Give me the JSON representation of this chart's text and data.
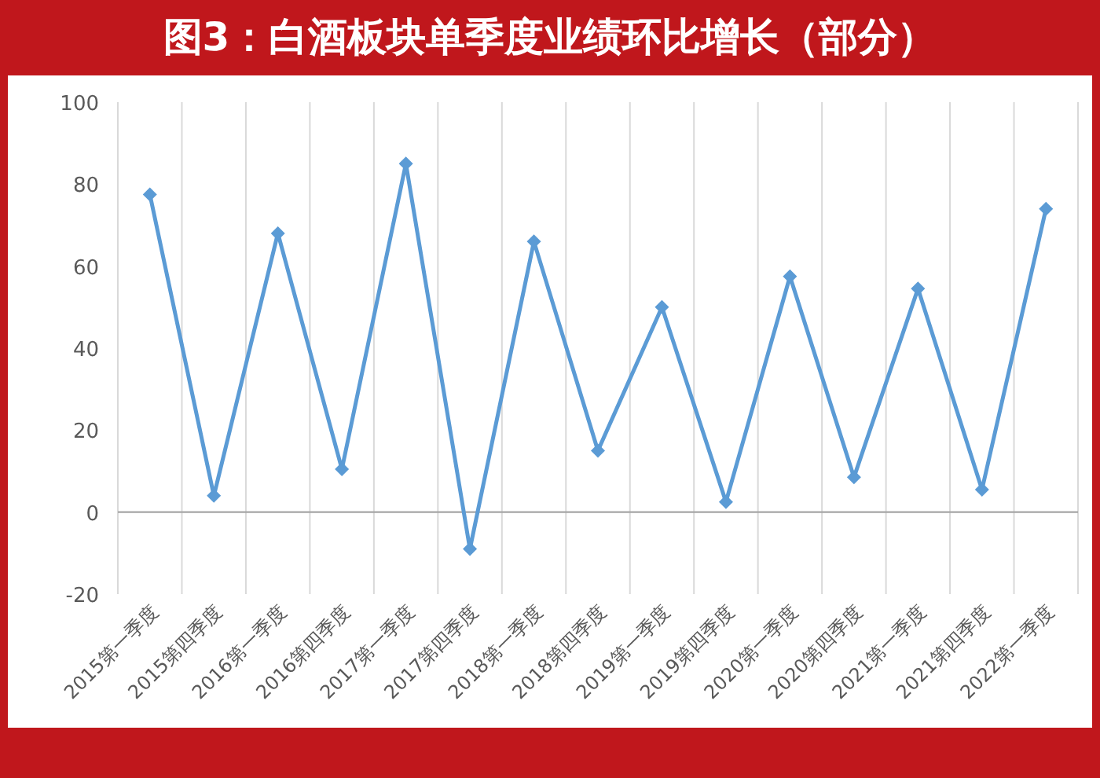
{
  "chart_data": {
    "type": "line",
    "title": "图3：白酒板块单季度业绩环比增长（部分）",
    "categories": [
      "2015第一季度",
      "2015第四季度",
      "2016第一季度",
      "2016第四季度",
      "2017第一季度",
      "2017第四季度",
      "2018第一季度",
      "2018第四季度",
      "2019第一季度",
      "2019第四季度",
      "2020第一季度",
      "2020第四季度",
      "2021第一季度",
      "2021第四季度",
      "2022第一季度"
    ],
    "values": [
      77.5,
      4,
      68,
      10.5,
      85,
      -9,
      66,
      15,
      50,
      2.5,
      57.5,
      8.5,
      54.5,
      5.5,
      74
    ],
    "color": "#5b9bd5",
    "ylim": [
      -20,
      100
    ],
    "yticks": [
      -20,
      0,
      20,
      40,
      60,
      80,
      100
    ],
    "grid": "x",
    "marker": "diamond",
    "line_style": "solid"
  }
}
